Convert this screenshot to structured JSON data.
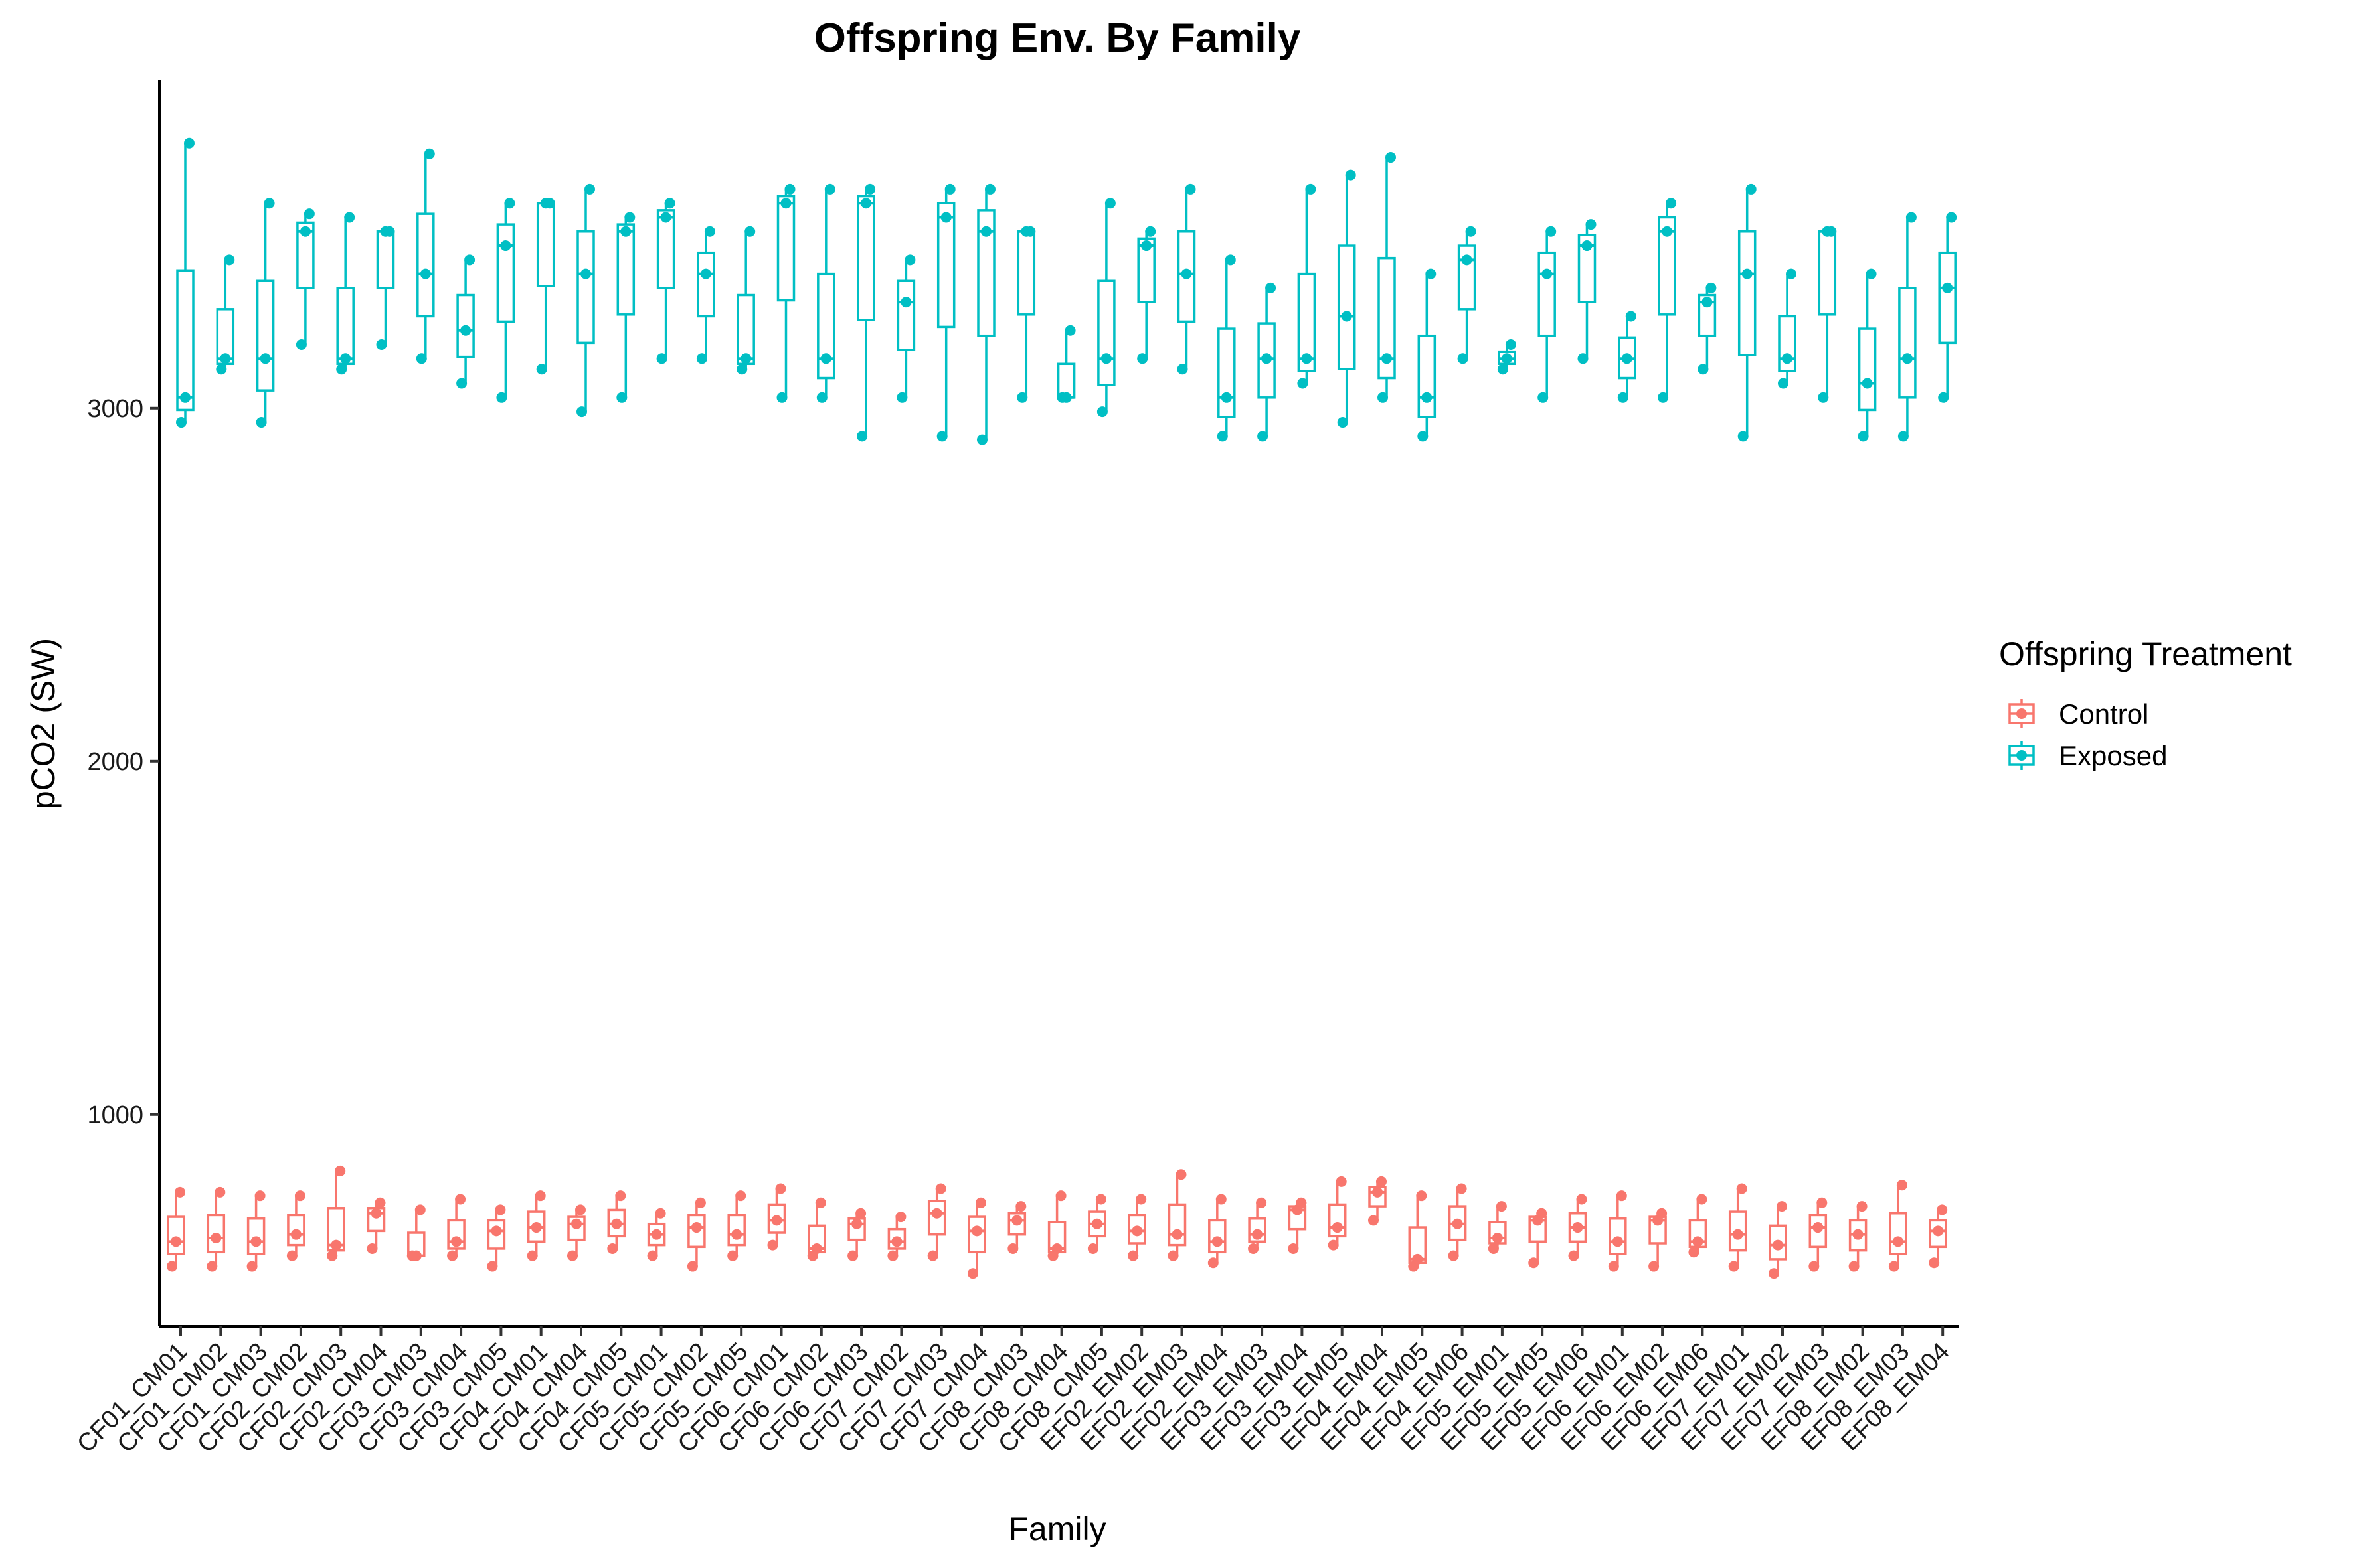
{
  "chart_data": {
    "type": "boxplot",
    "title": "Offspring Env. By Family",
    "xlabel": "Family",
    "ylabel": "pCO2 (SW)",
    "ylim": [
      400,
      3930
    ],
    "yticks": [
      1000,
      2000,
      3000
    ],
    "grid": false,
    "legend": {
      "title": "Offspring Treatment",
      "placement": "right",
      "entries": [
        "Control",
        "Exposed"
      ]
    },
    "colors": {
      "Control": "#F8766D",
      "Exposed": "#00BFC4"
    },
    "categories": [
      "CF01_CM01",
      "CF01_CM02",
      "CF01_CM03",
      "CF02_CM02",
      "CF02_CM03",
      "CF02_CM04",
      "CF03_CM03",
      "CF03_CM04",
      "CF03_CM05",
      "CF04_CM01",
      "CF04_CM04",
      "CF04_CM05",
      "CF05_CM01",
      "CF05_CM02",
      "CF05_CM05",
      "CF06_CM01",
      "CF06_CM02",
      "CF06_CM03",
      "CF07_CM02",
      "CF07_CM03",
      "CF07_CM04",
      "CF08_CM03",
      "CF08_CM04",
      "CF08_CM05",
      "EF02_EM02",
      "EF02_EM03",
      "EF02_EM04",
      "EF03_EM03",
      "EF03_EM04",
      "EF03_EM05",
      "EF04_EM04",
      "EF04_EM05",
      "EF04_EM06",
      "EF05_EM01",
      "EF05_EM05",
      "EF05_EM06",
      "EF06_EM01",
      "EF06_EM02",
      "EF06_EM06",
      "EF07_EM01",
      "EF07_EM02",
      "EF07_EM03",
      "EF08_EM02",
      "EF08_EM03",
      "EF08_EM04"
    ],
    "series": [
      {
        "name": "Control",
        "points": [
          [
            570,
            640,
            780
          ],
          [
            570,
            650,
            780
          ],
          [
            570,
            640,
            770
          ],
          [
            600,
            660,
            770
          ],
          [
            600,
            630,
            840
          ],
          [
            620,
            720,
            750
          ],
          [
            600,
            600,
            730
          ],
          [
            600,
            640,
            760
          ],
          [
            570,
            670,
            730
          ],
          [
            600,
            680,
            770
          ],
          [
            600,
            690,
            730
          ],
          [
            620,
            690,
            770
          ],
          [
            600,
            660,
            720
          ],
          [
            570,
            680,
            750
          ],
          [
            600,
            660,
            770
          ],
          [
            630,
            700,
            790
          ],
          [
            600,
            620,
            750
          ],
          [
            600,
            690,
            720
          ],
          [
            600,
            640,
            710
          ],
          [
            600,
            720,
            790
          ],
          [
            550,
            670,
            750
          ],
          [
            620,
            700,
            740
          ],
          [
            600,
            620,
            770
          ],
          [
            620,
            690,
            760
          ],
          [
            600,
            670,
            760
          ],
          [
            600,
            660,
            830
          ],
          [
            580,
            640,
            760
          ],
          [
            620,
            660,
            750
          ],
          [
            620,
            730,
            750
          ],
          [
            630,
            680,
            810
          ],
          [
            700,
            780,
            810
          ],
          [
            570,
            590,
            770
          ],
          [
            600,
            690,
            790
          ],
          [
            620,
            650,
            740
          ],
          [
            580,
            700,
            720
          ],
          [
            600,
            680,
            760
          ],
          [
            570,
            640,
            770
          ],
          [
            570,
            700,
            720
          ],
          [
            610,
            640,
            760
          ],
          [
            570,
            660,
            790
          ],
          [
            550,
            630,
            740
          ],
          [
            570,
            680,
            750
          ],
          [
            570,
            660,
            740
          ],
          [
            570,
            640,
            800
          ],
          [
            580,
            670,
            730
          ]
        ]
      },
      {
        "name": "Exposed",
        "points": [
          [
            2960,
            3030,
            3750
          ],
          [
            3110,
            3140,
            3420
          ],
          [
            2960,
            3140,
            3580
          ],
          [
            3180,
            3500,
            3550
          ],
          [
            3110,
            3140,
            3540
          ],
          [
            3180,
            3500,
            3500
          ],
          [
            3140,
            3380,
            3720
          ],
          [
            3070,
            3220,
            3420
          ],
          [
            3030,
            3460,
            3580
          ],
          [
            3110,
            3580,
            3580
          ],
          [
            2990,
            3380,
            3620
          ],
          [
            3030,
            3500,
            3540
          ],
          [
            3140,
            3540,
            3580
          ],
          [
            3140,
            3380,
            3500
          ],
          [
            3110,
            3140,
            3500
          ],
          [
            3030,
            3580,
            3620
          ],
          [
            3030,
            3140,
            3620
          ],
          [
            2920,
            3580,
            3620
          ],
          [
            3030,
            3300,
            3420
          ],
          [
            2920,
            3540,
            3620
          ],
          [
            2910,
            3500,
            3620
          ],
          [
            3030,
            3500,
            3500
          ],
          [
            3030,
            3030,
            3220
          ],
          [
            2990,
            3140,
            3580
          ],
          [
            3140,
            3460,
            3500
          ],
          [
            3110,
            3380,
            3620
          ],
          [
            2920,
            3030,
            3420
          ],
          [
            2920,
            3140,
            3340
          ],
          [
            3070,
            3140,
            3620
          ],
          [
            2960,
            3260,
            3660
          ],
          [
            3030,
            3140,
            3710
          ],
          [
            2920,
            3030,
            3380
          ],
          [
            3140,
            3420,
            3500
          ],
          [
            3110,
            3140,
            3180
          ],
          [
            3030,
            3380,
            3500
          ],
          [
            3140,
            3460,
            3520
          ],
          [
            3030,
            3140,
            3260
          ],
          [
            3030,
            3500,
            3580
          ],
          [
            3110,
            3300,
            3340
          ],
          [
            2920,
            3380,
            3620
          ],
          [
            3070,
            3140,
            3380
          ],
          [
            3030,
            3500,
            3500
          ],
          [
            2920,
            3070,
            3380
          ],
          [
            2920,
            3140,
            3540
          ],
          [
            3030,
            3340,
            3540
          ]
        ]
      }
    ]
  }
}
